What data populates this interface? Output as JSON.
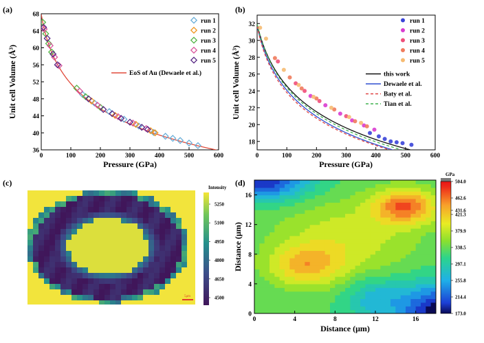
{
  "chart_data": [
    {
      "panel": "(a)",
      "type": "scatter",
      "xlabel": "Pressure (GPa)",
      "ylabel": "Unit cell Volume (Å³)",
      "xlim": [
        0,
        600
      ],
      "ylim": [
        36,
        68
      ],
      "xticks": [
        0,
        100,
        200,
        300,
        400,
        500,
        600
      ],
      "yticks": [
        36,
        40,
        44,
        48,
        52,
        56,
        60,
        64,
        68
      ],
      "legend_position": "top-right",
      "series": [
        {
          "name": "run 1",
          "color": "#6aaed8",
          "marker": "diamond-open",
          "points": [
            [
              140,
              49.0
            ],
            [
              180,
              47.0
            ],
            [
              230,
              45.0
            ],
            [
              280,
              43.2
            ],
            [
              330,
              41.6
            ],
            [
              380,
              40.1
            ],
            [
              420,
              39.2
            ],
            [
              445,
              38.7
            ],
            [
              470,
              38.2
            ],
            [
              500,
              37.6
            ],
            [
              530,
              37.0
            ]
          ]
        },
        {
          "name": "run 2",
          "color": "#f0961e",
          "marker": "diamond-open",
          "points": [
            [
              170,
              47.5
            ],
            [
              250,
              44.1
            ],
            [
              320,
              42.0
            ],
            [
              370,
              40.5
            ],
            [
              385,
              40.0
            ]
          ]
        },
        {
          "name": "run 3",
          "color": "#55b546",
          "marker": "diamond-open",
          "points": [
            [
              5,
              66.0
            ],
            [
              15,
              63.3
            ],
            [
              25,
              61.0
            ],
            [
              35,
              59.0
            ],
            [
              120,
              50.5
            ],
            [
              150,
              48.5
            ],
            [
              200,
              46.0
            ]
          ]
        },
        {
          "name": "run 4",
          "color": "#d9559c",
          "marker": "diamond-open",
          "points": [
            [
              10,
              64.4
            ],
            [
              30,
              60.5
            ],
            [
              45,
              57.8
            ],
            [
              60,
              55.8
            ],
            [
              130,
              49.8
            ],
            [
              190,
              46.5
            ],
            [
              260,
              43.8
            ],
            [
              310,
              42.3
            ],
            [
              355,
              41.0
            ]
          ]
        },
        {
          "name": "run 5",
          "color": "#5a2a86",
          "marker": "diamond-open",
          "points": [
            [
              8,
              64.8
            ],
            [
              20,
              62.2
            ],
            [
              40,
              58.5
            ],
            [
              55,
              56.0
            ],
            [
              160,
              48.0
            ],
            [
              210,
              45.5
            ],
            [
              240,
              44.5
            ],
            [
              270,
              43.4
            ],
            [
              300,
              42.5
            ],
            [
              340,
              41.3
            ],
            [
              360,
              40.8
            ]
          ]
        },
        {
          "name": "EoS of Au (Dewaele et al.)",
          "color": "#e04a3a",
          "marker": "line",
          "model": {
            "V0": 67.85,
            "K0": 167,
            "Kp": 5.9
          }
        }
      ]
    },
    {
      "panel": "(b)",
      "type": "scatter",
      "xlabel": "Pressure (GPa)",
      "ylabel": "Unit cell Volume (Å³)",
      "xlim": [
        0,
        600
      ],
      "ylim": [
        17,
        33
      ],
      "xticks": [
        0,
        100,
        200,
        300,
        400,
        500,
        600
      ],
      "yticks": [
        18,
        20,
        22,
        24,
        26,
        28,
        30,
        32
      ],
      "legend_position": "top-right",
      "series": [
        {
          "name": "run 1",
          "color": "#3a44d8",
          "marker": "circle",
          "points": [
            [
              380,
              19.0
            ],
            [
              410,
              18.6
            ],
            [
              430,
              18.3
            ],
            [
              450,
              18.0
            ],
            [
              470,
              17.9
            ],
            [
              490,
              17.8
            ],
            [
              520,
              17.6
            ]
          ]
        },
        {
          "name": "run 2",
          "color": "#d93cd0",
          "marker": "circle",
          "points": [
            [
              180,
              23.4
            ],
            [
              230,
              22.3
            ],
            [
              280,
              21.3
            ],
            [
              320,
              20.5
            ],
            [
              360,
              19.9
            ],
            [
              395,
              19.4
            ]
          ]
        },
        {
          "name": "run 3",
          "color": "#ef4f7a",
          "marker": "circle",
          "points": [
            [
              70,
              27.5
            ],
            [
              130,
              24.9
            ],
            [
              160,
              24.0
            ],
            [
              210,
              22.8
            ],
            [
              300,
              21.0
            ]
          ]
        },
        {
          "name": "run 4",
          "color": "#f07b5c",
          "marker": "circle",
          "points": [
            [
              60,
              27.9
            ],
            [
              110,
              25.6
            ],
            [
              150,
              24.3
            ],
            [
              200,
              23.1
            ],
            [
              260,
              21.8
            ],
            [
              330,
              20.4
            ],
            [
              370,
              19.8
            ]
          ]
        },
        {
          "name": "run 5",
          "color": "#f6bb72",
          "marker": "circle",
          "points": [
            [
              10,
              31.5
            ],
            [
              30,
              30.2
            ],
            [
              90,
              26.5
            ],
            [
              140,
              24.7
            ],
            [
              190,
              23.3
            ],
            [
              250,
              22.0
            ],
            [
              310,
              20.9
            ],
            [
              350,
              20.2
            ]
          ]
        },
        {
          "name": "this work",
          "color": "#111111",
          "marker": "line-solid",
          "model": {
            "V0": 31.9,
            "K0": 215,
            "Kp": 4.6
          }
        },
        {
          "name": "Dewaele et al.",
          "color": "#2f4fd0",
          "marker": "line-solid",
          "model": {
            "V0": 31.7,
            "K0": 200,
            "Kp": 4.5
          }
        },
        {
          "name": "Baty et al.",
          "color": "#e04545",
          "marker": "line-dash",
          "model": {
            "V0": 31.7,
            "K0": 180,
            "Kp": 4.8
          }
        },
        {
          "name": "Tian et al.",
          "color": "#3fb24e",
          "marker": "line-dash",
          "model": {
            "V0": 31.95,
            "K0": 205,
            "Kp": 4.55
          }
        }
      ]
    },
    {
      "panel": "(c)",
      "type": "heatmap",
      "colorbar_title": "Intensity",
      "colorbar_ticks": [
        "5250",
        "5100",
        "4950",
        "4800",
        "4650",
        "4500"
      ],
      "clim": [
        4500,
        5300
      ],
      "scalebar_label": "5μm",
      "description_values": {
        "ring": 4550,
        "background": 5250,
        "center": 5270
      }
    },
    {
      "panel": "(d)",
      "type": "heatmap",
      "xlabel": "Distance (μm)",
      "ylabel": "Distance (μm)",
      "xlim": [
        0,
        18
      ],
      "ylim": [
        0,
        18
      ],
      "xticks": [
        0,
        4,
        8,
        12,
        16
      ],
      "yticks": [
        0,
        4,
        8,
        12,
        16
      ],
      "colorbar_title": "GPa",
      "colorbar_ticks": [
        "504.0",
        "462.6",
        "431.6",
        "421.3",
        "379.9",
        "338.5",
        "297.1",
        "255.8",
        "214.4",
        "173.0"
      ],
      "clim": [
        173,
        504
      ]
    }
  ]
}
